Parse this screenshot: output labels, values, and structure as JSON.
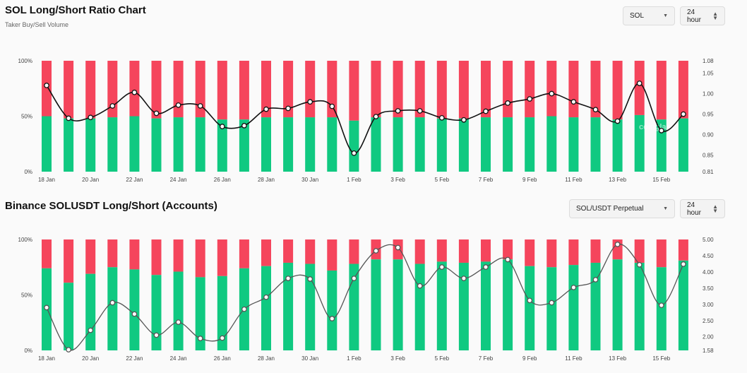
{
  "colors": {
    "long": "#10c981",
    "short": "#f5455c",
    "line1": "#111111",
    "line2": "#555555"
  },
  "chart1": {
    "title": "SOL Long/Short Ratio Chart",
    "subtitle": "Taker Buy/Sell Volume",
    "symbol_select": "SOL",
    "interval_select": "24 hour",
    "watermark": "coinglass"
  },
  "chart2": {
    "title": "Binance SOLUSDT Long/Short (Accounts)",
    "pair_select": "SOL/USDT Perpetual",
    "interval_select": "24 hour"
  },
  "chart_data": [
    {
      "type": "bar",
      "title": "SOL Long/Short Ratio Chart",
      "subtitle": "Taker Buy/Sell Volume",
      "categories": [
        "18 Jan",
        "19 Jan",
        "20 Jan",
        "21 Jan",
        "22 Jan",
        "23 Jan",
        "24 Jan",
        "25 Jan",
        "26 Jan",
        "27 Jan",
        "28 Jan",
        "29 Jan",
        "30 Jan",
        "31 Jan",
        "1 Feb",
        "2 Feb",
        "3 Feb",
        "4 Feb",
        "5 Feb",
        "6 Feb",
        "7 Feb",
        "8 Feb",
        "9 Feb",
        "10 Feb",
        "11 Feb",
        "12 Feb",
        "13 Feb",
        "14 Feb",
        "15 Feb",
        "16 Feb"
      ],
      "x_tick_labels": [
        "18 Jan",
        "20 Jan",
        "22 Jan",
        "24 Jan",
        "26 Jan",
        "28 Jan",
        "30 Jan",
        "1 Feb",
        "3 Feb",
        "5 Feb",
        "7 Feb",
        "9 Feb",
        "11 Feb",
        "13 Feb",
        "15 Feb"
      ],
      "left_axis": {
        "ticks": [
          "100%",
          "50%",
          "0%"
        ],
        "ylim": [
          0,
          100
        ]
      },
      "right_axis": {
        "ticks": [
          "1.08",
          "1.05",
          "1.00",
          "0.95",
          "0.90",
          "0.85",
          "0.81"
        ],
        "ylim": [
          0.81,
          1.08
        ]
      },
      "series": [
        {
          "name": "Long %",
          "values": [
            50,
            48,
            48,
            49,
            50,
            48,
            49,
            49,
            47,
            47,
            49,
            49,
            49,
            49,
            46,
            49,
            49,
            49,
            48,
            48,
            49,
            49,
            49,
            50,
            49,
            49,
            47,
            51,
            47,
            48
          ]
        },
        {
          "name": "Short %",
          "values": [
            50,
            52,
            52,
            51,
            50,
            52,
            51,
            51,
            53,
            53,
            51,
            51,
            51,
            51,
            54,
            51,
            51,
            51,
            52,
            52,
            51,
            51,
            51,
            50,
            51,
            51,
            53,
            49,
            53,
            52
          ]
        },
        {
          "name": "Long/Short Ratio",
          "values": [
            1.02,
            0.94,
            0.942,
            0.97,
            1.003,
            0.952,
            0.972,
            0.97,
            0.92,
            0.922,
            0.962,
            0.964,
            0.98,
            0.969,
            0.855,
            0.944,
            0.958,
            0.958,
            0.941,
            0.936,
            0.957,
            0.977,
            0.987,
            1.0,
            0.98,
            0.961,
            0.933,
            1.025,
            0.91,
            0.95
          ]
        }
      ]
    },
    {
      "type": "bar",
      "title": "Binance SOLUSDT Long/Short (Accounts)",
      "categories": [
        "18 Jan",
        "19 Jan",
        "20 Jan",
        "21 Jan",
        "22 Jan",
        "23 Jan",
        "24 Jan",
        "25 Jan",
        "26 Jan",
        "27 Jan",
        "28 Jan",
        "29 Jan",
        "30 Jan",
        "31 Jan",
        "1 Feb",
        "2 Feb",
        "3 Feb",
        "4 Feb",
        "5 Feb",
        "6 Feb",
        "7 Feb",
        "8 Feb",
        "9 Feb",
        "10 Feb",
        "11 Feb",
        "12 Feb",
        "13 Feb",
        "14 Feb",
        "15 Feb",
        "16 Feb"
      ],
      "x_tick_labels": [
        "18 Jan",
        "20 Jan",
        "22 Jan",
        "24 Jan",
        "26 Jan",
        "28 Jan",
        "30 Jan",
        "1 Feb",
        "3 Feb",
        "5 Feb",
        "7 Feb",
        "9 Feb",
        "11 Feb",
        "13 Feb",
        "15 Feb"
      ],
      "left_axis": {
        "ticks": [
          "100%",
          "50%",
          "0%"
        ],
        "ylim": [
          0,
          100
        ]
      },
      "right_axis": {
        "ticks": [
          "5.00",
          "4.50",
          "4.00",
          "3.50",
          "3.00",
          "2.50",
          "2.00",
          "1.58"
        ],
        "ylim": [
          1.58,
          5.0
        ]
      },
      "series": [
        {
          "name": "Long %",
          "values": [
            74,
            61,
            69,
            75,
            73,
            68,
            71,
            66,
            67,
            74,
            76,
            79,
            78,
            72,
            78,
            82,
            82,
            78,
            80,
            79,
            80,
            82,
            76,
            75,
            77,
            79,
            82,
            79,
            75,
            81
          ]
        },
        {
          "name": "Short %",
          "values": [
            26,
            39,
            31,
            25,
            27,
            32,
            29,
            34,
            33,
            26,
            24,
            21,
            22,
            28,
            22,
            18,
            18,
            22,
            20,
            21,
            20,
            18,
            24,
            25,
            23,
            21,
            18,
            21,
            25,
            19
          ]
        },
        {
          "name": "Long/Short Ratio",
          "values": [
            2.9,
            1.6,
            2.2,
            3.05,
            2.7,
            2.05,
            2.45,
            1.95,
            1.96,
            2.85,
            3.22,
            3.8,
            3.78,
            2.56,
            3.8,
            4.65,
            4.75,
            3.57,
            4.15,
            3.8,
            4.15,
            4.38,
            3.12,
            3.05,
            3.52,
            3.76,
            4.85,
            4.22,
            2.97,
            4.24
          ]
        }
      ]
    }
  ]
}
